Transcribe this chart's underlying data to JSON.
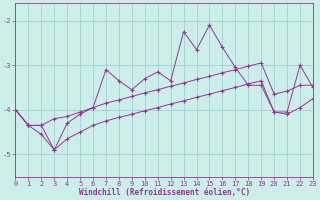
{
  "xlabel": "Windchill (Refroidissement éolien,°C)",
  "background_color": "#cceee8",
  "line_color": "#993399",
  "x_values": [
    0,
    1,
    2,
    3,
    4,
    5,
    6,
    7,
    8,
    9,
    10,
    11,
    12,
    13,
    14,
    15,
    16,
    17,
    18,
    19,
    20,
    21,
    22,
    23
  ],
  "y_main": [
    -4.0,
    -4.35,
    -4.35,
    -4.9,
    -4.3,
    -4.1,
    -3.95,
    -3.1,
    -3.35,
    -3.55,
    -3.3,
    -3.15,
    -3.35,
    -2.25,
    -2.65,
    -2.1,
    -2.6,
    -3.05,
    -3.45,
    -3.45,
    -4.05,
    -4.05,
    -3.0,
    -3.5
  ],
  "y_upper": [
    -4.0,
    -4.35,
    -4.35,
    -4.2,
    -4.15,
    -4.05,
    -3.95,
    -3.85,
    -3.78,
    -3.7,
    -3.62,
    -3.55,
    -3.47,
    -3.4,
    -3.32,
    -3.25,
    -3.17,
    -3.1,
    -3.02,
    -2.95,
    -3.65,
    -3.58,
    -3.45,
    -3.45
  ],
  "y_lower": [
    -4.0,
    -4.35,
    -4.55,
    -4.9,
    -4.65,
    -4.5,
    -4.35,
    -4.25,
    -4.17,
    -4.1,
    -4.02,
    -3.95,
    -3.87,
    -3.8,
    -3.72,
    -3.65,
    -3.57,
    -3.5,
    -3.42,
    -3.35,
    -4.05,
    -4.1,
    -3.95,
    -3.75
  ],
  "ylim": [
    -5.5,
    -1.6
  ],
  "xlim": [
    0,
    23
  ],
  "yticks": [
    -5,
    -4,
    -3,
    -2
  ],
  "ytick_labels": [
    "-5",
    "-4",
    "-3",
    "-2"
  ],
  "xticks": [
    0,
    1,
    2,
    3,
    4,
    5,
    6,
    7,
    8,
    9,
    10,
    11,
    12,
    13,
    14,
    15,
    16,
    17,
    18,
    19,
    20,
    21,
    22,
    23
  ],
  "grid_color": "#99cccc",
  "marker": "+"
}
